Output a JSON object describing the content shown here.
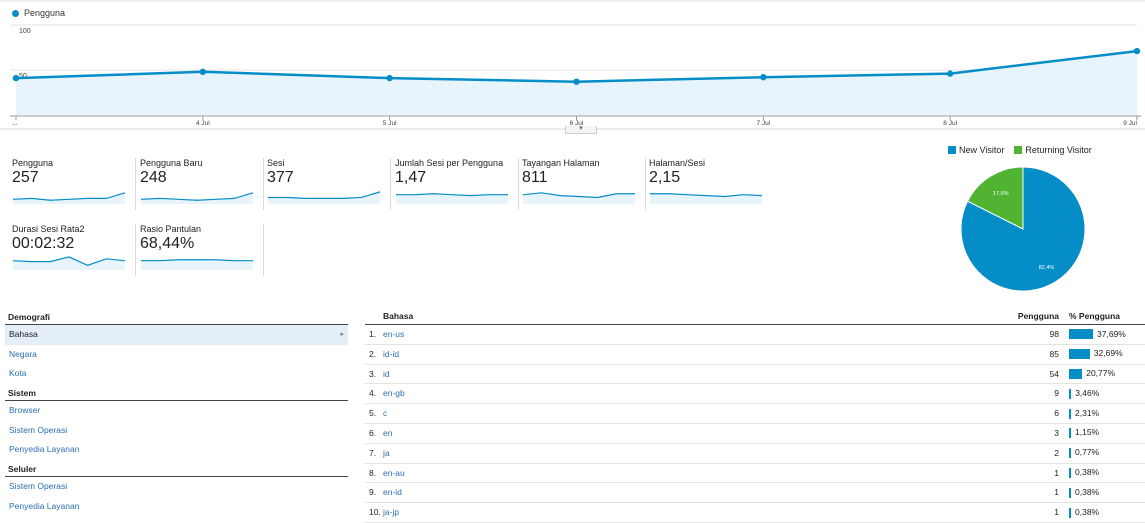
{
  "line_chart": {
    "legend": "Pengguna",
    "y_ticks": [
      "100",
      "50"
    ],
    "x_ticks": [
      "...",
      "4 Jul",
      "5 Jul",
      "6 Jul",
      "7 Jul",
      "8 Jul",
      "9 Jul"
    ],
    "ylim": [
      0,
      100
    ],
    "values": [
      41,
      48,
      41,
      37,
      42,
      46,
      71
    ],
    "collapse_glyph": "▾",
    "colors": {
      "line": "#058dc7",
      "fill": "#e8f4fb",
      "grid": "#e6e6e6"
    }
  },
  "metrics": [
    {
      "label": "Pengguna",
      "value": "257",
      "spark": [
        5,
        6,
        4,
        5,
        6,
        6,
        12
      ]
    },
    {
      "label": "Pengguna Baru",
      "value": "248",
      "spark": [
        5,
        6,
        5,
        4,
        5,
        6,
        12
      ]
    },
    {
      "label": "Sesi",
      "value": "377",
      "spark": [
        7,
        7,
        6,
        6,
        6,
        7,
        13
      ]
    },
    {
      "label": "Jumlah Sesi per Pengguna",
      "value": "1,47",
      "spark": [
        10,
        10,
        11,
        10,
        9,
        10,
        10
      ]
    },
    {
      "label": "Tayangan Halaman",
      "value": "811",
      "spark": [
        10,
        12,
        9,
        8,
        7,
        11,
        11
      ]
    },
    {
      "label": "Halaman/Sesi",
      "value": "2,15",
      "spark": [
        11,
        11,
        10,
        9,
        8,
        10,
        9
      ]
    },
    {
      "label": "Durasi Sesi Rata2",
      "value": "00:02:32",
      "spark": [
        10,
        9,
        9,
        14,
        5,
        12,
        10
      ]
    },
    {
      "label": "Rasio Pantulan",
      "value": "68,44%",
      "spark": [
        10,
        10,
        11,
        11,
        11,
        10,
        10
      ]
    }
  ],
  "pie": {
    "legend": [
      "New Visitor",
      "Returning Visitor"
    ],
    "values": [
      82.4,
      17.6
    ],
    "labels": [
      "82,4%",
      "17,6%"
    ],
    "colors": [
      "#058dc7",
      "#50b432"
    ]
  },
  "nav": {
    "demografi": "Demografi",
    "bahasa": "Bahasa",
    "negara": "Negara",
    "kota": "Kota",
    "sistem": "Sistem",
    "browser": "Browser",
    "sistem_operasi": "Sistem Operasi",
    "penyedia_layanan": "Penyedia Layanan",
    "seluler": "Seluler",
    "seluler_sistem_operasi": "Sistem Operasi",
    "seluler_penyedia_layanan": "Penyedia Layanan",
    "arrow": "▸"
  },
  "table": {
    "header": {
      "lang": "Bahasa",
      "users": "Pengguna",
      "pct": "% Pengguna"
    },
    "rows": [
      {
        "num": "1.",
        "lang": "en-us",
        "users": "98",
        "pct": "37,69%",
        "share": 37.69
      },
      {
        "num": "2.",
        "lang": "id-id",
        "users": "85",
        "pct": "32,69%",
        "share": 32.69
      },
      {
        "num": "3.",
        "lang": "id",
        "users": "54",
        "pct": "20,77%",
        "share": 20.77
      },
      {
        "num": "4.",
        "lang": "en-gb",
        "users": "9",
        "pct": "3,46%",
        "share": 3.46
      },
      {
        "num": "5.",
        "lang": "c",
        "users": "6",
        "pct": "2,31%",
        "share": 2.31
      },
      {
        "num": "6.",
        "lang": "en",
        "users": "3",
        "pct": "1,15%",
        "share": 1.15
      },
      {
        "num": "7.",
        "lang": "ja",
        "users": "2",
        "pct": "0,77%",
        "share": 0.77
      },
      {
        "num": "8.",
        "lang": "en-au",
        "users": "1",
        "pct": "0,38%",
        "share": 0.38
      },
      {
        "num": "9.",
        "lang": "en-id",
        "users": "1",
        "pct": "0,38%",
        "share": 0.38
      },
      {
        "num": "10.",
        "lang": "ja-jp",
        "users": "1",
        "pct": "0,38%",
        "share": 0.38
      }
    ]
  }
}
